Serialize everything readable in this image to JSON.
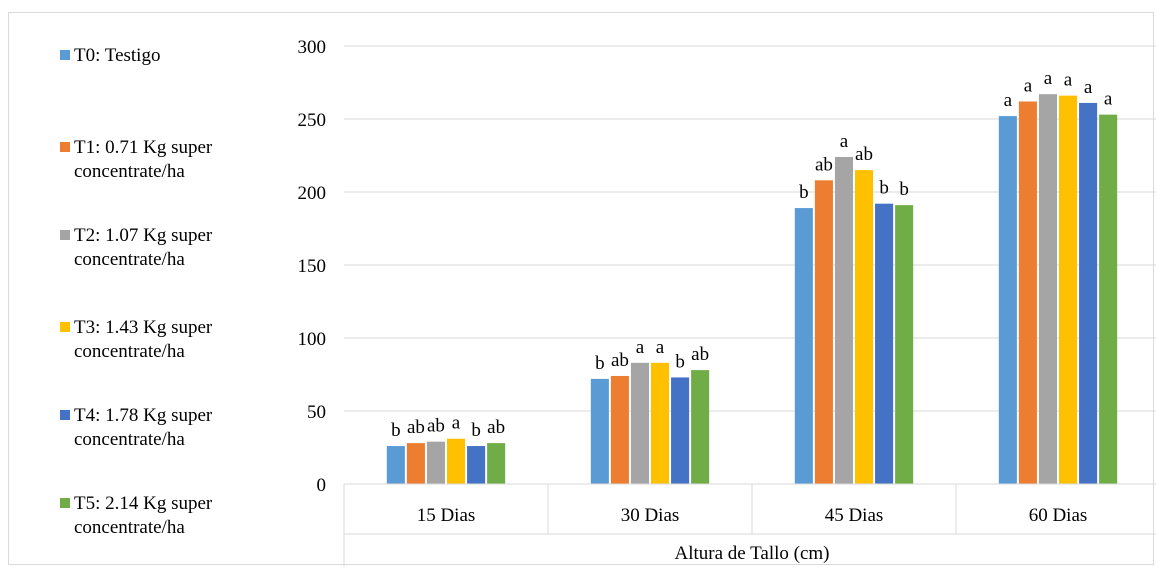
{
  "chart_data": {
    "type": "bar",
    "categories": [
      "15 Dias",
      "30 Dias",
      "45 Dias",
      "60 Dias"
    ],
    "group_label": "Altura de Tallo (cm)",
    "ylim": [
      0,
      300
    ],
    "yticks": [
      "0",
      "50",
      "100",
      "150",
      "200",
      "250",
      "300"
    ],
    "grid": true,
    "legend_position": "left",
    "series": [
      {
        "name": "T0: Testigo",
        "color": "#5b9bd5",
        "values": [
          26,
          72,
          189,
          252
        ],
        "labels": [
          "b",
          "b",
          "b",
          "a"
        ]
      },
      {
        "name": "T1: 0.71 Kg super concentrate/ha",
        "color": "#ed7d31",
        "values": [
          28,
          74,
          208,
          262
        ],
        "labels": [
          "ab",
          "ab",
          "ab",
          "a"
        ]
      },
      {
        "name": "T2: 1.07 Kg super concentrate/ha",
        "color": "#a5a5a5",
        "values": [
          29,
          83,
          224,
          267
        ],
        "labels": [
          "ab",
          "a",
          "a",
          "a"
        ]
      },
      {
        "name": "T3: 1.43 Kg super concentrate/ha",
        "color": "#ffc000",
        "values": [
          31,
          83,
          215,
          266
        ],
        "labels": [
          "a",
          "a",
          "ab",
          "a"
        ]
      },
      {
        "name": "T4: 1.78 Kg super concentrate/ha",
        "color": "#4472c4",
        "values": [
          26,
          73,
          192,
          261
        ],
        "labels": [
          "b",
          "b",
          "b",
          "a"
        ]
      },
      {
        "name": "T5: 2.14 Kg super concentrate/ha",
        "color": "#70ad47",
        "values": [
          28,
          78,
          191,
          253
        ],
        "labels": [
          "ab",
          "ab",
          "b",
          "a"
        ]
      }
    ]
  }
}
